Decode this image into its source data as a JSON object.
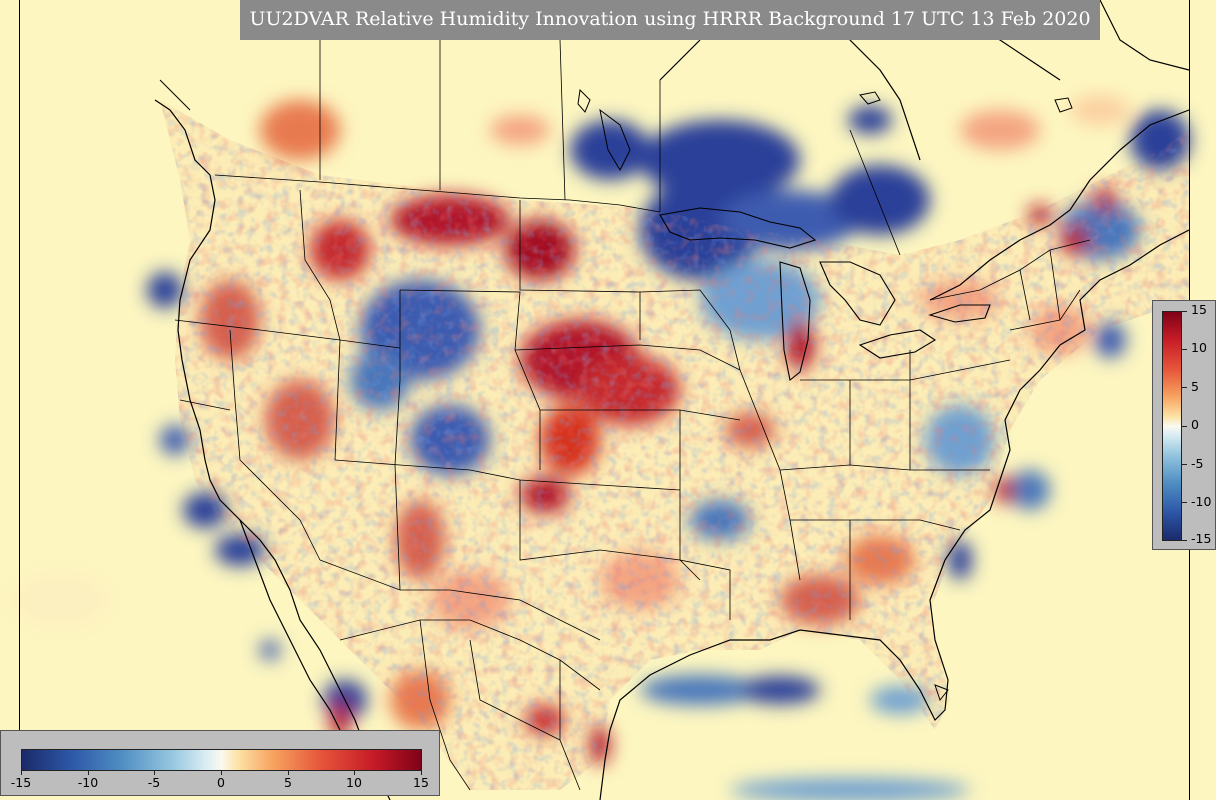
{
  "title": "UU2DVAR Relative Humidity Innovation using HRRR Background 17 UTC 13 Feb 2020",
  "colorbar_right": {
    "ticks": [
      "15",
      "10",
      "5",
      "0",
      "-5",
      "-10",
      "-15"
    ],
    "values": [
      15,
      10,
      5,
      0,
      -5,
      -10,
      -15
    ]
  },
  "colorbar_bottom": {
    "ticks": [
      "-15",
      "-10",
      "-5",
      "0",
      "5",
      "10",
      "15"
    ],
    "values": [
      -15,
      -10,
      -5,
      0,
      5,
      10,
      15
    ]
  },
  "colors": {
    "background": "#fdf6c0",
    "strong_positive": "#b2182b",
    "positive": "#ef8a62",
    "neutral": "#fafaf0",
    "negative": "#67a9cf",
    "strong_negative": "#2b3f99",
    "coast": "#000000",
    "title_bar": "#8a8a8a"
  }
}
